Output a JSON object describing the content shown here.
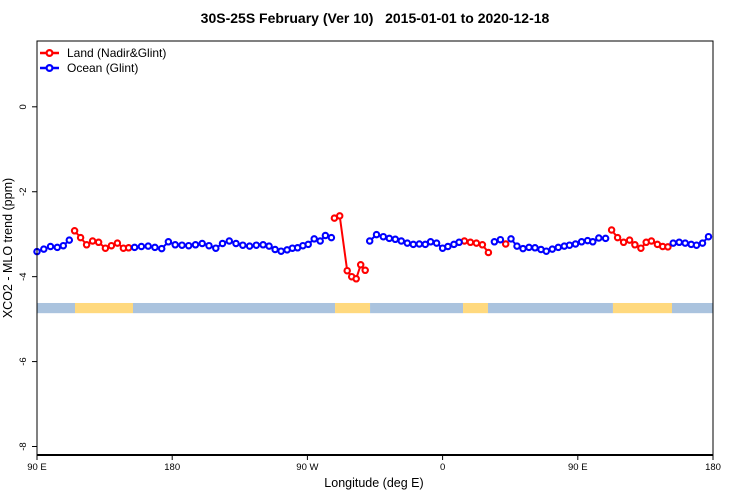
{
  "chart_data": {
    "type": "line",
    "title": "30S-25S February (Ver 10)   2015-01-01 to 2020-12-18",
    "xlabel": "Longitude (deg E)",
    "ylabel": "XCO2 - MLO trend (ppm)",
    "xlim": [
      90,
      540
    ],
    "ylim": [
      -8.2,
      1.55
    ],
    "grid": false,
    "legend_position": "top-left",
    "x_ticks": [
      {
        "lon": 90,
        "label": "90 E"
      },
      {
        "lon": 180,
        "label": "180"
      },
      {
        "lon": 270,
        "label": "90 W"
      },
      {
        "lon": 360,
        "label": "0"
      },
      {
        "lon": 450,
        "label": "90 E"
      },
      {
        "lon": 540,
        "label": "180"
      }
    ],
    "y_ticks": [
      {
        "value": 0,
        "label": "0"
      },
      {
        "value": -2,
        "label": "-2"
      },
      {
        "value": -4,
        "label": "-4"
      },
      {
        "value": -6,
        "label": "-6"
      },
      {
        "value": -8,
        "label": "-8"
      }
    ],
    "legend": [
      {
        "label": "Land (Nadir&Glint)",
        "series": "land",
        "color": "#ff0000"
      },
      {
        "label": "Ocean (Glint)",
        "series": "ocean",
        "color": "#0000ff"
      }
    ],
    "colors": {
      "land": "#ff0000",
      "ocean": "#0000ff",
      "band_land": "#ffd97e",
      "band_ocean": "#aac3de",
      "axis": "#000000",
      "background": "#ffffff"
    },
    "surface_band": {
      "y_top": -4.62,
      "y_bottom": -4.86,
      "segments": [
        {
          "from": 90,
          "to": 115.3,
          "surface": "ocean"
        },
        {
          "from": 115.3,
          "to": 153.9,
          "surface": "land"
        },
        {
          "from": 153.9,
          "to": 288.4,
          "surface": "ocean"
        },
        {
          "from": 288.4,
          "to": 311.7,
          "surface": "land"
        },
        {
          "from": 311.7,
          "to": 373.6,
          "surface": "ocean"
        },
        {
          "from": 373.6,
          "to": 390.2,
          "surface": "land"
        },
        {
          "from": 390.2,
          "to": 473.4,
          "surface": "ocean"
        },
        {
          "from": 473.4,
          "to": 512.7,
          "surface": "land"
        },
        {
          "from": 512.7,
          "to": 540,
          "surface": "ocean"
        }
      ]
    },
    "series": [
      {
        "name": "Land (Nadir&Glint)",
        "type": "land",
        "runs": [
          [
            [
              115,
              -2.92
            ],
            [
              119,
              -3.08
            ],
            [
              123,
              -3.25
            ],
            [
              127,
              -3.16
            ],
            [
              131,
              -3.19
            ],
            [
              135.5,
              -3.33
            ],
            [
              139.5,
              -3.27
            ],
            [
              143.5,
              -3.21
            ],
            [
              147.5,
              -3.33
            ],
            [
              151,
              -3.32
            ]
          ],
          [
            [
              288,
              -2.62
            ],
            [
              291.5,
              -2.57
            ],
            [
              296.5,
              -3.86
            ],
            [
              299.5,
              -4.0
            ],
            [
              302.5,
              -4.05
            ],
            [
              305.5,
              -3.72
            ],
            [
              308.5,
              -3.85
            ]
          ],
          [
            [
              374.5,
              -3.16
            ],
            [
              378.5,
              -3.19
            ],
            [
              382.5,
              -3.21
            ],
            [
              386.5,
              -3.25
            ],
            [
              390.5,
              -3.43
            ]
          ],
          [
            [
              402,
              -3.23
            ]
          ],
          [
            [
              472.5,
              -2.9
            ],
            [
              476.5,
              -3.08
            ],
            [
              480.5,
              -3.19
            ],
            [
              484.5,
              -3.14
            ],
            [
              488,
              -3.25
            ],
            [
              492,
              -3.33
            ],
            [
              495.5,
              -3.19
            ],
            [
              499,
              -3.16
            ],
            [
              503,
              -3.24
            ],
            [
              506.5,
              -3.29
            ],
            [
              510,
              -3.3
            ]
          ]
        ]
      },
      {
        "name": "Ocean (Glint)",
        "type": "ocean",
        "runs": [
          [
            [
              90,
              -3.41
            ],
            [
              94.5,
              -3.35
            ],
            [
              99,
              -3.29
            ],
            [
              103.5,
              -3.31
            ],
            [
              107.5,
              -3.27
            ],
            [
              111.5,
              -3.14
            ]
          ],
          [
            [
              155,
              -3.31
            ],
            [
              159.5,
              -3.29
            ],
            [
              164,
              -3.28
            ],
            [
              168.5,
              -3.31
            ],
            [
              173,
              -3.34
            ],
            [
              177.5,
              -3.18
            ],
            [
              182,
              -3.25
            ],
            [
              186.5,
              -3.26
            ],
            [
              191,
              -3.27
            ],
            [
              195.5,
              -3.25
            ],
            [
              200,
              -3.22
            ],
            [
              204.5,
              -3.27
            ],
            [
              209,
              -3.33
            ],
            [
              213.5,
              -3.22
            ],
            [
              218,
              -3.16
            ],
            [
              222.5,
              -3.22
            ],
            [
              227,
              -3.26
            ],
            [
              231.5,
              -3.28
            ],
            [
              236,
              -3.26
            ],
            [
              240.5,
              -3.25
            ],
            [
              244.5,
              -3.28
            ],
            [
              248.5,
              -3.36
            ],
            [
              252.5,
              -3.4
            ],
            [
              256.5,
              -3.37
            ],
            [
              260,
              -3.33
            ],
            [
              263.5,
              -3.32
            ],
            [
              267,
              -3.27
            ],
            [
              270.5,
              -3.24
            ],
            [
              274.5,
              -3.11
            ],
            [
              278.5,
              -3.16
            ],
            [
              282,
              -3.03
            ],
            [
              286,
              -3.08
            ]
          ],
          [
            [
              311.5,
              -3.16
            ],
            [
              316,
              -3.01
            ],
            [
              320.5,
              -3.06
            ],
            [
              324.5,
              -3.1
            ],
            [
              328.5,
              -3.12
            ],
            [
              332.5,
              -3.16
            ],
            [
              336.5,
              -3.21
            ],
            [
              340.5,
              -3.24
            ],
            [
              344.5,
              -3.23
            ],
            [
              348.5,
              -3.24
            ],
            [
              352,
              -3.18
            ],
            [
              356,
              -3.21
            ],
            [
              360,
              -3.33
            ],
            [
              363.5,
              -3.29
            ],
            [
              367.5,
              -3.24
            ],
            [
              371,
              -3.19
            ]
          ],
          [
            [
              394.5,
              -3.18
            ],
            [
              398.5,
              -3.13
            ]
          ],
          [
            [
              405.5,
              -3.11
            ],
            [
              409.5,
              -3.28
            ],
            [
              413.5,
              -3.34
            ],
            [
              417.5,
              -3.31
            ],
            [
              421.5,
              -3.32
            ],
            [
              425.5,
              -3.36
            ],
            [
              429,
              -3.4
            ],
            [
              433,
              -3.35
            ],
            [
              437,
              -3.31
            ],
            [
              441,
              -3.28
            ],
            [
              444.5,
              -3.26
            ],
            [
              448.5,
              -3.23
            ],
            [
              452.5,
              -3.18
            ],
            [
              456.5,
              -3.15
            ],
            [
              460,
              -3.18
            ],
            [
              464,
              -3.09
            ],
            [
              468.5,
              -3.1
            ]
          ],
          [
            [
              513.5,
              -3.21
            ],
            [
              517.5,
              -3.19
            ],
            [
              521.5,
              -3.21
            ],
            [
              525.5,
              -3.24
            ],
            [
              529,
              -3.26
            ],
            [
              533,
              -3.21
            ],
            [
              537,
              -3.06
            ]
          ]
        ]
      }
    ]
  }
}
